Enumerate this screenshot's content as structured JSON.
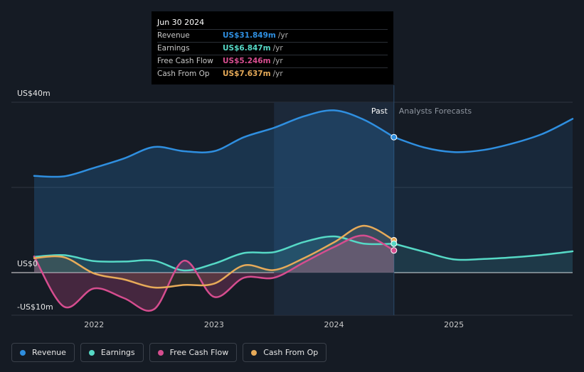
{
  "tooltip": {
    "date": "Jun 30 2024",
    "rows": [
      {
        "label": "Revenue",
        "value": "US$31.849m",
        "unit": "/yr",
        "color": "#2f8fe0"
      },
      {
        "label": "Earnings",
        "value": "US$6.847m",
        "unit": "/yr",
        "color": "#56d9c6"
      },
      {
        "label": "Free Cash Flow",
        "value": "US$5.246m",
        "unit": "/yr",
        "color": "#d64d8f"
      },
      {
        "label": "Cash From Op",
        "value": "US$7.637m",
        "unit": "/yr",
        "color": "#e7ab59"
      }
    ]
  },
  "legend": [
    {
      "label": "Revenue",
      "color": "#2f8fe0"
    },
    {
      "label": "Earnings",
      "color": "#56d9c6"
    },
    {
      "label": "Free Cash Flow",
      "color": "#d64d8f"
    },
    {
      "label": "Cash From Op",
      "color": "#e7ab59"
    }
  ],
  "chart_data": {
    "type": "line",
    "title": "",
    "xlabel": "",
    "ylabel": "",
    "ylim": [
      -10,
      40
    ],
    "xlim": [
      2021.5,
      2025.99
    ],
    "y_tick_labels": [
      {
        "value": 40,
        "label": "US$40m"
      },
      {
        "value": 0,
        "label": "US$0"
      },
      {
        "value": -10,
        "label": "-US$10m"
      }
    ],
    "x_tick_labels": [
      {
        "value": 2022,
        "label": "2022"
      },
      {
        "value": 2023,
        "label": "2023"
      },
      {
        "value": 2024,
        "label": "2024"
      },
      {
        "value": 2025,
        "label": "2025"
      }
    ],
    "past_label": "Past",
    "forecast_label": "Analysts Forecasts",
    "past_start": 2023.5,
    "divider": 2024.5,
    "grid": true,
    "series": [
      {
        "name": "Revenue",
        "color": "#2f8fe0",
        "x": [
          2021.5,
          2021.75,
          2022.0,
          2022.25,
          2022.5,
          2022.75,
          2023.0,
          2023.25,
          2023.5,
          2023.75,
          2024.0,
          2024.25,
          2024.5
        ],
        "values": [
          22.7,
          22.6,
          24.6,
          26.8,
          29.5,
          28.5,
          28.5,
          31.8,
          34.0,
          36.7,
          38.1,
          35.9,
          31.8
        ],
        "forecast_x": [
          2024.5,
          2024.75,
          2025.0,
          2025.25,
          2025.5,
          2025.75,
          2025.99
        ],
        "forecast_values": [
          31.8,
          29.4,
          28.3,
          28.8,
          30.4,
          32.7,
          36.1
        ]
      },
      {
        "name": "Earnings",
        "color": "#56d9c6",
        "x": [
          2021.5,
          2021.75,
          2022.0,
          2022.25,
          2022.5,
          2022.75,
          2023.0,
          2023.25,
          2023.5,
          2023.75,
          2024.0,
          2024.25,
          2024.5
        ],
        "values": [
          3.7,
          4.1,
          2.7,
          2.6,
          2.8,
          0.5,
          2.1,
          4.6,
          4.8,
          7.2,
          8.5,
          6.8,
          6.8
        ],
        "forecast_x": [
          2024.5,
          2024.75,
          2025.0,
          2025.25,
          2025.5,
          2025.75,
          2025.99
        ],
        "forecast_values": [
          6.8,
          4.9,
          3.1,
          3.2,
          3.6,
          4.2,
          5.0
        ]
      },
      {
        "name": "Free Cash Flow",
        "color": "#d64d8f",
        "x": [
          2021.5,
          2021.75,
          2022.0,
          2022.25,
          2022.5,
          2022.75,
          2023.0,
          2023.25,
          2023.5,
          2023.75,
          2024.0,
          2024.25,
          2024.5
        ],
        "values": [
          3.8,
          -8.0,
          -3.7,
          -6.0,
          -8.6,
          2.8,
          -5.7,
          -1.2,
          -1.2,
          2.4,
          6.0,
          8.7,
          5.2
        ]
      },
      {
        "name": "Cash From Op",
        "color": "#e7ab59",
        "x": [
          2021.5,
          2021.75,
          2022.0,
          2022.25,
          2022.5,
          2022.75,
          2023.0,
          2023.25,
          2023.5,
          2023.75,
          2024.0,
          2024.25,
          2024.5
        ],
        "values": [
          3.4,
          3.6,
          -0.2,
          -1.6,
          -3.5,
          -2.9,
          -2.6,
          1.7,
          0.6,
          3.4,
          7.1,
          11.0,
          7.6
        ]
      }
    ]
  }
}
